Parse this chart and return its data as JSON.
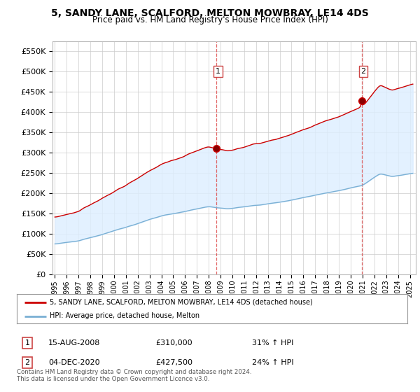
{
  "title": "5, SANDY LANE, SCALFORD, MELTON MOWBRAY, LE14 4DS",
  "subtitle": "Price paid vs. HM Land Registry's House Price Index (HPI)",
  "title_fontsize": 10,
  "subtitle_fontsize": 8.5,
  "ylabel_ticks": [
    "£0",
    "£50K",
    "£100K",
    "£150K",
    "£200K",
    "£250K",
    "£300K",
    "£350K",
    "£400K",
    "£450K",
    "£500K",
    "£550K"
  ],
  "ytick_values": [
    0,
    50000,
    100000,
    150000,
    200000,
    250000,
    300000,
    350000,
    400000,
    450000,
    500000,
    550000
  ],
  "ylim": [
    0,
    575000
  ],
  "xlim_start": 1994.8,
  "xlim_end": 2025.5,
  "purchase1_year": 2008.625,
  "purchase1_price": 310000,
  "purchase2_year": 2020.92,
  "purchase2_price": 427500,
  "property_color": "#cc0000",
  "hpi_color": "#7ab0d4",
  "fill_color": "#ddeeff",
  "dashed_color": "#dd4444",
  "legend_property": "5, SANDY LANE, SCALFORD, MELTON MOWBRAY, LE14 4DS (detached house)",
  "legend_hpi": "HPI: Average price, detached house, Melton",
  "annotation1_date": "15-AUG-2008",
  "annotation1_price": "£310,000",
  "annotation1_hpi": "31% ↑ HPI",
  "annotation2_date": "04-DEC-2020",
  "annotation2_price": "£427,500",
  "annotation2_hpi": "24% ↑ HPI",
  "footer": "Contains HM Land Registry data © Crown copyright and database right 2024.\nThis data is licensed under the Open Government Licence v3.0.",
  "background_color": "#ffffff",
  "grid_color": "#cccccc"
}
